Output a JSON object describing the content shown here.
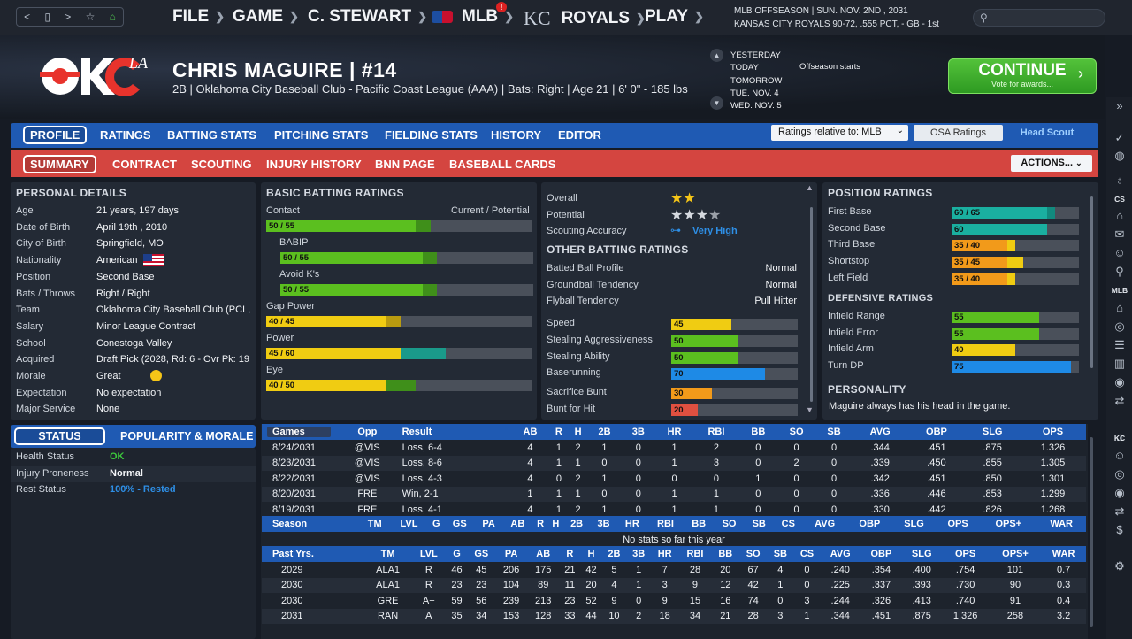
{
  "nav": {
    "back": "<",
    "page": "▯",
    "forward": ">",
    "star": "☆",
    "home": "⌂"
  },
  "menus": [
    {
      "label": "FILE"
    },
    {
      "label": "GAME"
    },
    {
      "label": "C. STEWART"
    },
    {
      "label": "MLB",
      "badge": "!"
    },
    {
      "label": "ROYALS"
    },
    {
      "label": "PLAY"
    }
  ],
  "kc_logo": "KC",
  "top_info": {
    "line1": "MLB OFFSEASON  |  SUN. NOV. 2ND , 2031",
    "line2": "KANSAS CITY ROYALS   90-72, .555 PCT, - GB - 1st"
  },
  "player": {
    "name": "CHRIS MAGUIRE  |  #14",
    "sub": "2B | Oklahoma City Baseball Club - Pacific Coast League (AAA)  |  Bats: Right  |  Age 21  |  6' 0\" - 185 lbs",
    "logo_text": "OKC",
    "logo_affil": "LA"
  },
  "dates": [
    "YESTERDAY",
    "TODAY",
    "TOMORROW",
    "TUE. NOV. 4",
    "WED. NOV. 5"
  ],
  "date_note": "Offseason starts",
  "continue": {
    "label": "CONTINUE",
    "sub": "Vote for awards..."
  },
  "tabs1": [
    "PROFILE",
    "RATINGS",
    "BATTING STATS",
    "PITCHING STATS",
    "FIELDING STATS",
    "HISTORY",
    "EDITOR"
  ],
  "ratings_select": "Ratings relative to: MLB",
  "osa_label": "OSA Ratings",
  "head_scout_label": "Head Scout",
  "tabs2": [
    "SUMMARY",
    "CONTRACT",
    "SCOUTING",
    "INJURY HISTORY",
    "BNN PAGE",
    "BASEBALL CARDS"
  ],
  "actions_label": "ACTIONS...",
  "personal": {
    "title": "PERSONAL DETAILS",
    "rows": [
      {
        "k": "Age",
        "v": "21 years, 197 days"
      },
      {
        "k": "Date of Birth",
        "v": "April 19th , 2010"
      },
      {
        "k": "City of Birth",
        "v": "Springfield, MO"
      },
      {
        "k": "Nationality",
        "v": "American"
      },
      {
        "k": "Position",
        "v": "Second Base"
      },
      {
        "k": "Bats / Throws",
        "v": "Right / Right"
      },
      {
        "k": "Team",
        "v": "Oklahoma City Baseball Club (PCL,"
      },
      {
        "k": "Salary",
        "v": "Minor League Contract"
      },
      {
        "k": "School",
        "v": "Conestoga Valley"
      },
      {
        "k": "Acquired",
        "v": "Draft Pick (2028, Rd: 6 - Ovr Pk: 19"
      },
      {
        "k": "Morale",
        "v": "Great"
      },
      {
        "k": "Expectation",
        "v": "No expectation"
      },
      {
        "k": "Major Service",
        "v": "None"
      }
    ]
  },
  "status": {
    "tab1": "STATUS",
    "tab2": "POPULARITY & MORALE",
    "rows": [
      {
        "k": "Health Status",
        "v": "OK",
        "color": "#3cc83c"
      },
      {
        "k": "Injury Proneness",
        "v": "Normal",
        "color": "#f2f4f7"
      },
      {
        "k": "Rest Status",
        "v": "100% - Rested",
        "color": "#2e8fe6"
      }
    ]
  },
  "batting": {
    "title": "BASIC BATTING RATINGS",
    "cp_label": "Current / Potential",
    "rows": [
      {
        "name": "Contact",
        "label": "50 / 55",
        "cur": 50,
        "pot": 55,
        "color": "#5bbf1f",
        "potcolor": "#3f8f1a"
      },
      {
        "name": "BABIP",
        "label": "50 / 55",
        "cur": 50,
        "pot": 55,
        "color": "#5bbf1f",
        "potcolor": "#3f8f1a"
      },
      {
        "name": "Avoid K's",
        "label": "50 / 55",
        "cur": 50,
        "pot": 55,
        "color": "#5bbf1f",
        "potcolor": "#3f8f1a"
      },
      {
        "name": "Gap Power",
        "label": "40 / 45",
        "cur": 40,
        "pot": 45,
        "color": "#f0cc12",
        "potcolor": "#b99b10"
      },
      {
        "name": "Power",
        "label": "45 / 60",
        "cur": 45,
        "pot": 60,
        "color": "#f0cc12",
        "potcolor": "#1a9a8a"
      },
      {
        "name": "Eye",
        "label": "40 / 50",
        "cur": 40,
        "pot": 50,
        "color": "#f0cc12",
        "potcolor": "#3f8f1a"
      }
    ]
  },
  "middle": {
    "overall_label": "Overall",
    "overall_stars": 2,
    "potential_label": "Potential",
    "potential_stars": 3.5,
    "accuracy_label": "Scouting Accuracy",
    "accuracy_value": "Very High",
    "other_title": "OTHER BATTING RATINGS",
    "other": [
      {
        "k": "Batted Ball Profile",
        "v": "Normal"
      },
      {
        "k": "Groundball Tendency",
        "v": "Normal"
      },
      {
        "k": "Flyball Tendency",
        "v": "Pull Hitter"
      }
    ],
    "running": [
      {
        "k": "Speed",
        "v": 45,
        "color": "#f0cc12"
      },
      {
        "k": "Stealing Aggressiveness",
        "v": 50,
        "color": "#5bbf1f"
      },
      {
        "k": "Stealing Ability",
        "v": 50,
        "color": "#5bbf1f"
      },
      {
        "k": "Baserunning",
        "v": 70,
        "color": "#1e8ae6"
      },
      {
        "k": "Sacrifice Bunt",
        "v": 30,
        "color": "#f29a1a"
      },
      {
        "k": "Bunt for Hit",
        "v": 20,
        "color": "#e05040"
      }
    ]
  },
  "position": {
    "title": "POSITION RATINGS",
    "rows": [
      {
        "k": "First Base",
        "label": "60 / 65",
        "cur": 60,
        "pot": 65,
        "color": "#1aafa0",
        "potcolor": "#128a7e"
      },
      {
        "k": "Second Base",
        "label": "60",
        "cur": 60,
        "pot": 60,
        "color": "#1aafa0",
        "potcolor": "#1aafa0"
      },
      {
        "k": "Third Base",
        "label": "35 / 40",
        "cur": 35,
        "pot": 40,
        "color": "#f29a1a",
        "potcolor": "#f0cc12"
      },
      {
        "k": "Shortstop",
        "label": "35 / 45",
        "cur": 35,
        "pot": 45,
        "color": "#f29a1a",
        "potcolor": "#f0cc12"
      },
      {
        "k": "Left Field",
        "label": "35 / 40",
        "cur": 35,
        "pot": 40,
        "color": "#f29a1a",
        "potcolor": "#f0cc12"
      }
    ],
    "def_title": "DEFENSIVE RATINGS",
    "def": [
      {
        "k": "Infield Range",
        "v": 55,
        "color": "#5bbf1f"
      },
      {
        "k": "Infield Error",
        "v": 55,
        "color": "#5bbf1f"
      },
      {
        "k": "Infield Arm",
        "v": 40,
        "color": "#f0cc12"
      },
      {
        "k": "Turn DP",
        "v": 75,
        "color": "#1e8ae6"
      }
    ],
    "personality_title": "PERSONALITY",
    "personality_text": "Maguire always has his head in the game."
  },
  "games": {
    "select": "Games",
    "headers": [
      "Opp",
      "Result",
      "AB",
      "R",
      "H",
      "2B",
      "3B",
      "HR",
      "RBI",
      "BB",
      "SO",
      "SB",
      "AVG",
      "OBP",
      "SLG",
      "OPS"
    ],
    "rows": [
      [
        "8/24/2031",
        "@VIS",
        "Loss, 6-4",
        "4",
        "1",
        "2",
        "1",
        "0",
        "1",
        "2",
        "0",
        "0",
        "0",
        ".344",
        ".451",
        ".875",
        "1.326"
      ],
      [
        "8/23/2031",
        "@VIS",
        "Loss, 8-6",
        "4",
        "1",
        "1",
        "0",
        "0",
        "1",
        "3",
        "0",
        "2",
        "0",
        ".339",
        ".450",
        ".855",
        "1.305"
      ],
      [
        "8/22/2031",
        "@VIS",
        "Loss, 4-3",
        "4",
        "0",
        "2",
        "1",
        "0",
        "0",
        "0",
        "1",
        "0",
        "0",
        ".342",
        ".451",
        ".850",
        "1.301"
      ],
      [
        "8/20/2031",
        "FRE",
        "Win, 2-1",
        "1",
        "1",
        "1",
        "0",
        "0",
        "1",
        "1",
        "0",
        "0",
        "0",
        ".336",
        ".446",
        ".853",
        "1.299"
      ],
      [
        "8/19/2031",
        "FRE",
        "Loss, 4-1",
        "4",
        "1",
        "2",
        "1",
        "0",
        "1",
        "1",
        "0",
        "0",
        "0",
        ".330",
        ".442",
        ".826",
        "1.268"
      ]
    ]
  },
  "season": {
    "headers": [
      "Season",
      "TM",
      "LVL",
      "G",
      "GS",
      "PA",
      "AB",
      "R",
      "H",
      "2B",
      "3B",
      "HR",
      "RBI",
      "BB",
      "SO",
      "SB",
      "CS",
      "AVG",
      "OBP",
      "SLG",
      "OPS",
      "OPS+",
      "WAR"
    ],
    "empty": "No stats so far this year"
  },
  "past": {
    "headers": [
      "Past Yrs.",
      "TM",
      "LVL",
      "G",
      "GS",
      "PA",
      "AB",
      "R",
      "H",
      "2B",
      "3B",
      "HR",
      "RBI",
      "BB",
      "SO",
      "SB",
      "CS",
      "AVG",
      "OBP",
      "SLG",
      "OPS",
      "OPS+",
      "WAR"
    ],
    "rows": [
      [
        "2029",
        "ALA1",
        "R",
        "46",
        "45",
        "206",
        "175",
        "21",
        "42",
        "5",
        "1",
        "7",
        "28",
        "20",
        "67",
        "4",
        "0",
        ".240",
        ".354",
        ".400",
        ".754",
        "101",
        "0.7"
      ],
      [
        "2030",
        "ALA1",
        "R",
        "23",
        "23",
        "104",
        "89",
        "11",
        "20",
        "4",
        "1",
        "3",
        "9",
        "12",
        "42",
        "1",
        "0",
        ".225",
        ".337",
        ".393",
        ".730",
        "90",
        "0.3"
      ],
      [
        "2030",
        "GRE",
        "A+",
        "59",
        "56",
        "239",
        "213",
        "23",
        "52",
        "9",
        "0",
        "9",
        "15",
        "16",
        "74",
        "0",
        "3",
        ".244",
        ".326",
        ".413",
        ".740",
        "91",
        "0.4"
      ],
      [
        "2031",
        "RAN",
        "A",
        "35",
        "34",
        "153",
        "128",
        "33",
        "44",
        "10",
        "2",
        "18",
        "34",
        "21",
        "28",
        "3",
        "1",
        ".344",
        ".451",
        ".875",
        "1.326",
        "258",
        "3.2"
      ]
    ]
  },
  "sidebar": {
    "labels": [
      "CS",
      "MLB",
      "KC"
    ],
    "icons": [
      "chevron-double-right-icon",
      "check-icon",
      "globe-icon",
      "bulb-icon",
      "home-icon",
      "mail-icon",
      "people-icon",
      "search-icon",
      "home-icon",
      "target-icon",
      "list-icon",
      "chart-icon",
      "baseball-icon",
      "swap-icon",
      "home-icon",
      "people-icon",
      "target-icon",
      "baseball-icon",
      "swap-icon",
      "dollar-icon",
      "gear-icon"
    ]
  }
}
